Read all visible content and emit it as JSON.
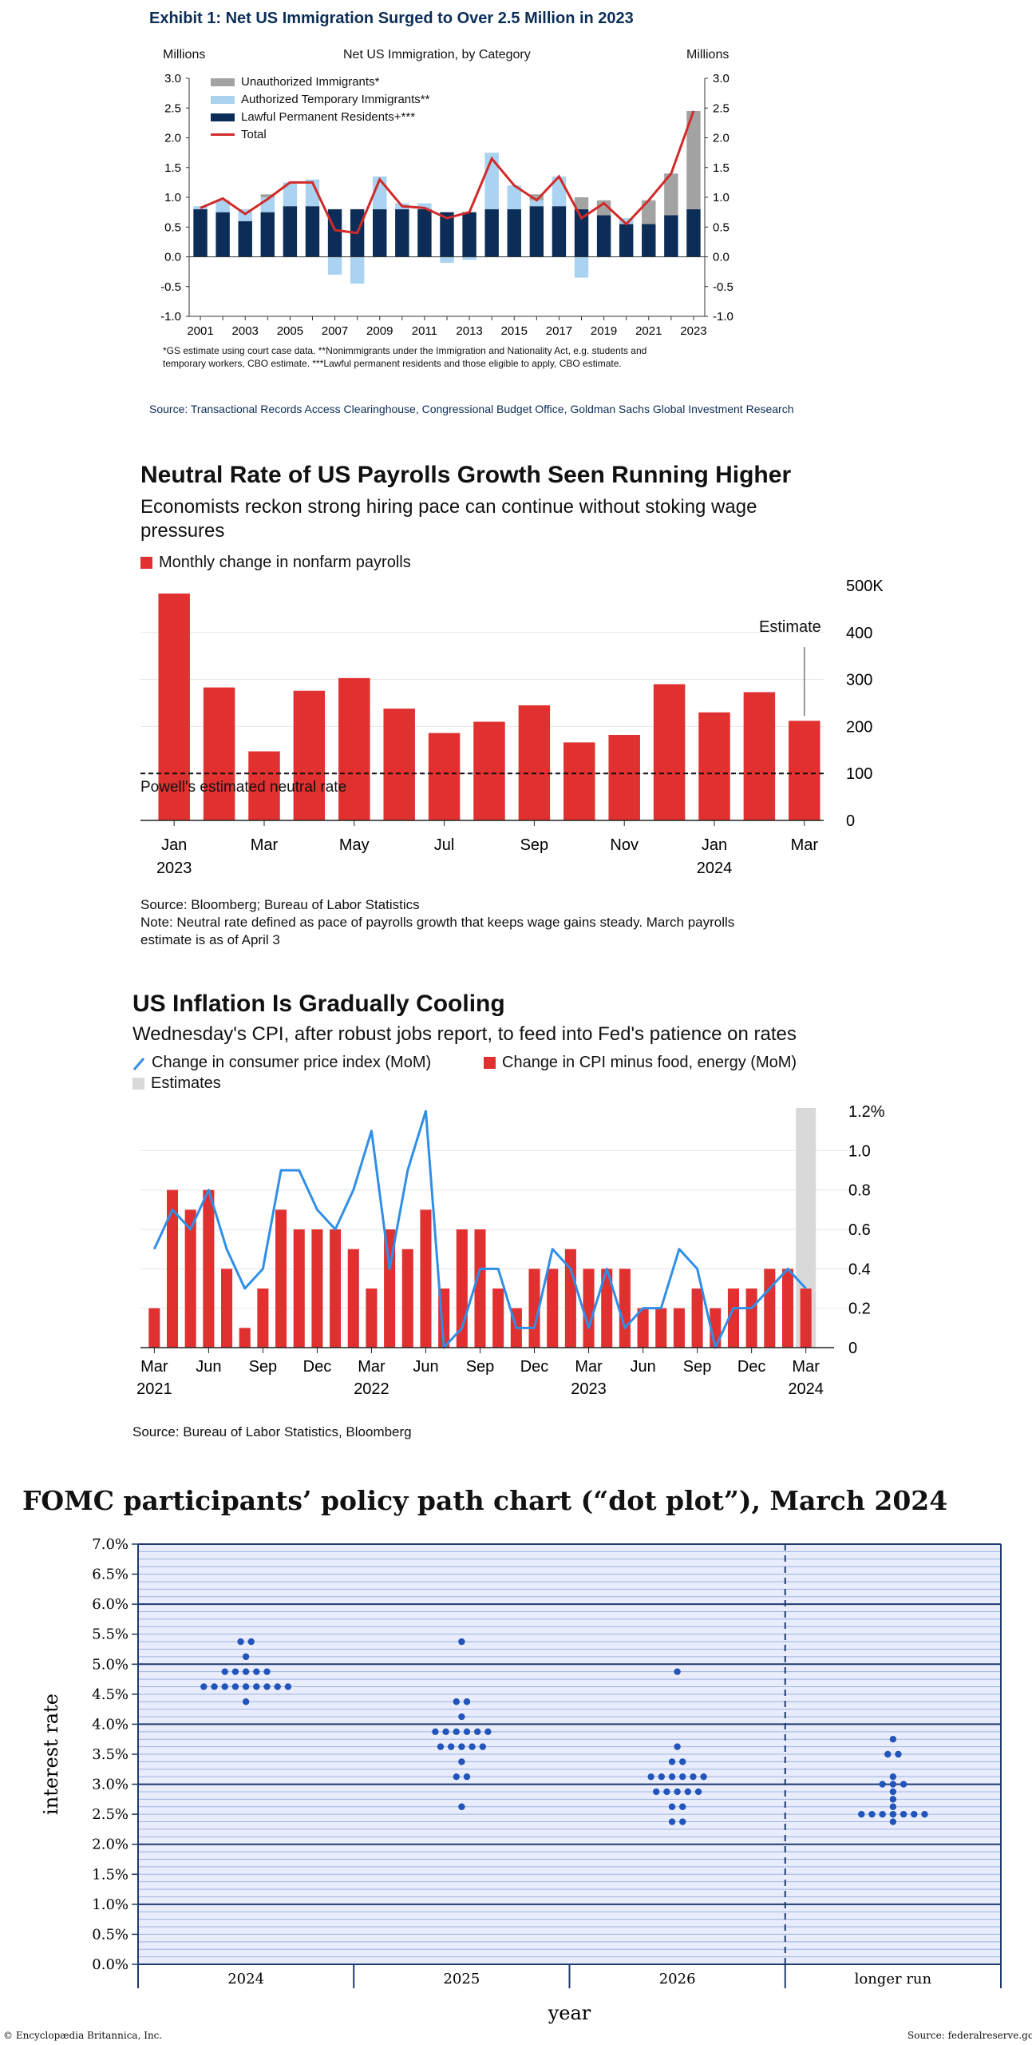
{
  "exhibit1": {
    "title": "Exhibit 1: Net US Immigration Surged to Over 2.5 Million in 2023",
    "units_left": "Millions",
    "units_right": "Millions",
    "center_label": "Net US Immigration, by Category",
    "footnote_line1": "*GS estimate using court case data. **Nonimmigrants under the Immigration and Nationality Act, e.g. students and",
    "footnote_line2": "temporary workers, CBO estimate. ***Lawful permanent residents and those eligible to apply, CBO estimate.",
    "source": "Source: Transactional Records Access Clearinghouse, Congressional Budget Office, Goldman Sachs Global Investment Research"
  },
  "exhibit2": {
    "title": "Neutral Rate of US Payrolls Growth Seen Running Higher",
    "subtitle_line1": "Economists reckon strong hiring pace can continue without stoking wage",
    "subtitle_line2": "pressures",
    "legend": "Monthly change in nonfarm payrolls",
    "estimate_label": "Estimate",
    "neutral_label": "Powell's estimated neutral rate",
    "source": "Source: Bloomberg; Bureau of Labor Statistics",
    "note_line1": "Note: Neutral rate defined as pace of payrolls growth that keeps wage gains steady. March payrolls",
    "note_line2": "estimate is as of April 3"
  },
  "exhibit3": {
    "title": "US Inflation Is Gradually Cooling",
    "subtitle": "Wednesday's CPI, after robust jobs report, to feed into Fed's patience on rates",
    "legend_line": "Change in consumer price index (MoM)",
    "legend_bar": "Change in CPI minus food, energy (MoM)",
    "legend_est": "Estimates",
    "source": "Source: Bureau of Labor Statistics, Bloomberg"
  },
  "exhibit4": {
    "title": "FOMC participants’ policy path chart (“dot plot”), March 2024",
    "credit_left": "© Encyclopædia Britannica, Inc.",
    "credit_right": "Source: federalreserve.gov"
  },
  "colors": {
    "unauthorized": "#a3a3a3",
    "authorized_temp": "#a9d3f0",
    "lawful_perm": "#0b2d57",
    "total_line": "#d12a2a",
    "payroll_bar": "#e03030",
    "cpi_line": "#2f8fe8",
    "core_bar": "#e03030",
    "estimate_band": "#d9d9d9",
    "dot": "#2255bb",
    "dot_bg": "#e8ecfb",
    "dot_line_major": "#1e3a6e",
    "dot_line_minor": "#9fb3e0"
  },
  "chart_data": [
    {
      "id": "immigration",
      "type": "bar",
      "stacked": true,
      "xlabel": "",
      "ylabel": "Millions",
      "ylim": [
        -1.0,
        3.0
      ],
      "yticks": [
        "3.0",
        "2.5",
        "2.0",
        "1.5",
        "1.0",
        "0.5",
        "0.0",
        "-0.5",
        "-1.0"
      ],
      "ytick_values": [
        3.0,
        2.5,
        2.0,
        1.5,
        1.0,
        0.5,
        0.0,
        -0.5,
        -1.0
      ],
      "categories": [
        "2001",
        "2002",
        "2003",
        "2004",
        "2005",
        "2006",
        "2007",
        "2008",
        "2009",
        "2010",
        "2011",
        "2012",
        "2013",
        "2014",
        "2015",
        "2016",
        "2017",
        "2018",
        "2019",
        "2020",
        "2021",
        "2022",
        "2023"
      ],
      "xtick_labels": [
        "2001",
        "2003",
        "2005",
        "2007",
        "2009",
        "2011",
        "2013",
        "2015",
        "2017",
        "2019",
        "2021",
        "2023"
      ],
      "legend_placement": "top-left",
      "series": [
        {
          "name": "Unauthorized Immigrants*",
          "values": [
            0.0,
            0.0,
            0.0,
            0.05,
            0.0,
            0.0,
            0.0,
            0.0,
            0.0,
            0.0,
            0.0,
            0.0,
            0.0,
            0.0,
            0.0,
            0.1,
            0.0,
            0.2,
            0.25,
            0.0,
            0.4,
            0.7,
            1.65
          ]
        },
        {
          "name": "Authorized Temporary Immigrants**",
          "values": [
            0.05,
            0.2,
            0.2,
            0.25,
            0.4,
            0.45,
            -0.3,
            -0.45,
            0.55,
            0.1,
            0.1,
            -0.1,
            -0.05,
            0.95,
            0.4,
            0.1,
            0.5,
            -0.35,
            0.0,
            0.1,
            0.0,
            0.0,
            0.0
          ]
        },
        {
          "name": "Lawful Permanent Residents+***",
          "values": [
            0.8,
            0.75,
            0.6,
            0.75,
            0.85,
            0.85,
            0.8,
            0.8,
            0.8,
            0.8,
            0.8,
            0.75,
            0.75,
            0.8,
            0.8,
            0.85,
            0.85,
            0.8,
            0.7,
            0.55,
            0.55,
            0.7,
            0.8
          ]
        }
      ],
      "total": {
        "name": "Total",
        "values": [
          0.82,
          0.98,
          0.72,
          0.97,
          1.25,
          1.25,
          0.45,
          0.4,
          1.3,
          0.85,
          0.82,
          0.65,
          0.75,
          1.65,
          1.2,
          0.95,
          1.35,
          0.65,
          0.9,
          0.55,
          0.95,
          1.4,
          2.45
        ]
      }
    },
    {
      "id": "payrolls",
      "type": "bar",
      "xlabel": "",
      "ylabel": "",
      "ylim": [
        0,
        500
      ],
      "yticks": [
        "500K",
        "400",
        "300",
        "200",
        "100",
        "0"
      ],
      "ytick_values": [
        500,
        400,
        300,
        200,
        100,
        0
      ],
      "categories": [
        "Jan 2023",
        "Feb 2023",
        "Mar 2023",
        "Apr 2023",
        "May 2023",
        "Jun 2023",
        "Jul 2023",
        "Aug 2023",
        "Sep 2023",
        "Oct 2023",
        "Nov 2023",
        "Dec 2023",
        "Jan 2024",
        "Feb 2024",
        "Mar 2024"
      ],
      "xtick_labels": [
        "Jan",
        "Mar",
        "May",
        "Jul",
        "Sep",
        "Nov",
        "Jan",
        "Mar"
      ],
      "xtick_year_labels": [
        "2023",
        "2024"
      ],
      "series": [
        {
          "name": "Monthly change in nonfarm payrolls",
          "values": [
            483,
            283,
            147,
            276,
            303,
            238,
            186,
            210,
            245,
            166,
            182,
            290,
            230,
            273,
            212
          ]
        }
      ],
      "reference_line": {
        "label": "Powell's estimated neutral rate",
        "value": 100
      },
      "estimate_index": 14
    },
    {
      "id": "cpi",
      "type": "bar",
      "xlabel": "",
      "ylabel": "",
      "ylim": [
        0,
        1.2
      ],
      "yticks": [
        "1.2%",
        "1.0",
        "0.8",
        "0.6",
        "0.4",
        "0.2",
        "0"
      ],
      "ytick_values": [
        1.2,
        1.0,
        0.8,
        0.6,
        0.4,
        0.2,
        0
      ],
      "x": [
        "2021-03",
        "2021-04",
        "2021-05",
        "2021-06",
        "2021-07",
        "2021-08",
        "2021-09",
        "2021-10",
        "2021-11",
        "2021-12",
        "2022-01",
        "2022-02",
        "2022-03",
        "2022-04",
        "2022-05",
        "2022-06",
        "2022-07",
        "2022-08",
        "2022-09",
        "2022-10",
        "2022-11",
        "2022-12",
        "2023-01",
        "2023-02",
        "2023-03",
        "2023-04",
        "2023-05",
        "2023-06",
        "2023-07",
        "2023-08",
        "2023-09",
        "2023-10",
        "2023-11",
        "2023-12",
        "2024-01",
        "2024-02",
        "2024-03"
      ],
      "xtick_labels": [
        "Mar",
        "Jun",
        "Sep",
        "Dec",
        "Mar",
        "Jun",
        "Sep",
        "Dec",
        "Mar",
        "Jun",
        "Sep",
        "Dec",
        "Mar"
      ],
      "xtick_year_labels": [
        "2021",
        "2022",
        "2023",
        "2024"
      ],
      "series": [
        {
          "name": "Change in CPI minus food, energy (MoM)",
          "values": [
            0.2,
            0.8,
            0.7,
            0.8,
            0.4,
            0.1,
            0.3,
            0.7,
            0.6,
            0.6,
            0.6,
            0.5,
            0.3,
            0.6,
            0.5,
            0.7,
            0.3,
            0.6,
            0.6,
            0.3,
            0.2,
            0.4,
            0.4,
            0.5,
            0.4,
            0.4,
            0.4,
            0.2,
            0.2,
            0.2,
            0.3,
            0.2,
            0.3,
            0.3,
            0.4,
            0.4,
            0.3
          ]
        },
        {
          "name": "Change in consumer price index (MoM)",
          "values": [
            0.5,
            0.7,
            0.6,
            0.8,
            0.5,
            0.3,
            0.4,
            0.9,
            0.9,
            0.7,
            0.6,
            0.8,
            1.1,
            0.4,
            0.9,
            1.2,
            0.0,
            0.1,
            0.4,
            0.4,
            0.1,
            0.1,
            0.5,
            0.4,
            0.1,
            0.4,
            0.1,
            0.2,
            0.2,
            0.5,
            0.4,
            0.0,
            0.2,
            0.2,
            0.3,
            0.4,
            0.3
          ]
        }
      ],
      "estimate_index": 36
    },
    {
      "id": "dotplot",
      "type": "scatter",
      "xlabel": "year",
      "ylabel": "interest rate",
      "ylim": [
        0,
        7.0
      ],
      "yticks": [
        "7.0%",
        "6.5%",
        "6.0%",
        "5.5%",
        "5.0%",
        "4.5%",
        "4.0%",
        "3.5%",
        "3.0%",
        "2.5%",
        "2.0%",
        "1.5%",
        "1.0%",
        "0.5%",
        "0.0%"
      ],
      "ytick_values": [
        7.0,
        6.5,
        6.0,
        5.5,
        5.0,
        4.5,
        4.0,
        3.5,
        3.0,
        2.5,
        2.0,
        1.5,
        1.0,
        0.5,
        0.0
      ],
      "categories": [
        "2024",
        "2025",
        "2026",
        "longer run"
      ],
      "grid": true,
      "columns": [
        {
          "year": "2024",
          "dots": [
            [
              5.375,
              2
            ],
            [
              5.125,
              1
            ],
            [
              4.875,
              5
            ],
            [
              4.625,
              9
            ],
            [
              4.375,
              1
            ]
          ]
        },
        {
          "year": "2025",
          "dots": [
            [
              5.375,
              1
            ],
            [
              4.375,
              2
            ],
            [
              4.125,
              1
            ],
            [
              3.875,
              6
            ],
            [
              3.625,
              5
            ],
            [
              3.375,
              1
            ],
            [
              3.125,
              2
            ],
            [
              2.625,
              1
            ]
          ]
        },
        {
          "year": "2026",
          "dots": [
            [
              4.875,
              1
            ],
            [
              3.625,
              1
            ],
            [
              3.375,
              2
            ],
            [
              3.125,
              6
            ],
            [
              2.875,
              5
            ],
            [
              2.625,
              2
            ],
            [
              2.375,
              2
            ]
          ]
        },
        {
          "year": "longer run",
          "dots": [
            [
              3.75,
              1
            ],
            [
              3.5,
              2
            ],
            [
              3.125,
              1
            ],
            [
              3.0,
              3
            ],
            [
              2.875,
              1
            ],
            [
              2.75,
              1
            ],
            [
              2.625,
              1
            ],
            [
              2.5,
              7
            ],
            [
              2.375,
              1
            ]
          ]
        }
      ]
    }
  ]
}
